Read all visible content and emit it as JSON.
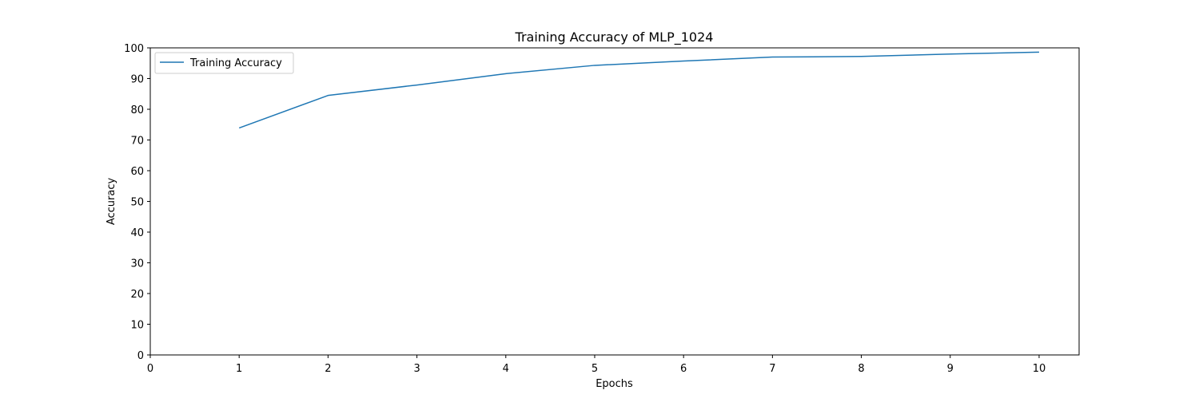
{
  "chart_data": {
    "type": "line",
    "title": "Training Accuracy of MLP_1024",
    "xlabel": "Epochs",
    "ylabel": "Accuracy",
    "xlim": [
      0,
      10.45
    ],
    "ylim": [
      0,
      100
    ],
    "xticks": [
      0,
      1,
      2,
      3,
      4,
      5,
      6,
      7,
      8,
      9,
      10
    ],
    "yticks": [
      0,
      10,
      20,
      30,
      40,
      50,
      60,
      70,
      80,
      90,
      100
    ],
    "grid": false,
    "legend_position": "top-left",
    "series": [
      {
        "name": "Training Accuracy",
        "color": "#1f77b4",
        "x": [
          1,
          2,
          3,
          4,
          5,
          6,
          7,
          8,
          9,
          10
        ],
        "y": [
          73.9,
          84.5,
          87.9,
          91.6,
          94.3,
          95.7,
          97.0,
          97.2,
          98.0,
          98.6
        ]
      }
    ]
  }
}
